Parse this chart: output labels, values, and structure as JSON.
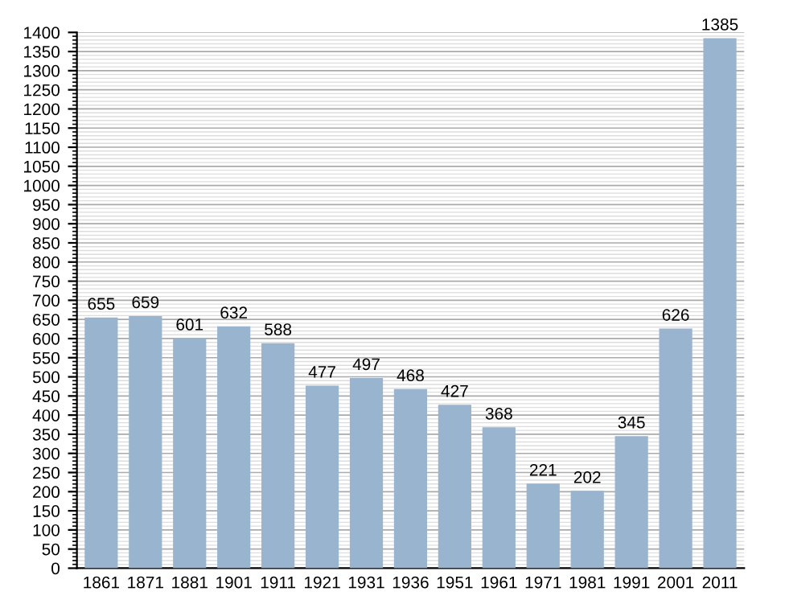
{
  "chart_data": {
    "type": "bar",
    "categories": [
      "1861",
      "1871",
      "1881",
      "1901",
      "1911",
      "1921",
      "1931",
      "1936",
      "1951",
      "1961",
      "1971",
      "1981",
      "1991",
      "2001",
      "2011"
    ],
    "values": [
      655,
      659,
      601,
      632,
      588,
      477,
      497,
      468,
      427,
      368,
      221,
      202,
      345,
      626,
      1385
    ],
    "color": "#98b4cf",
    "ylim": [
      0,
      1400
    ],
    "yticks": [
      0,
      50,
      100,
      150,
      200,
      250,
      300,
      350,
      400,
      450,
      500,
      550,
      600,
      650,
      700,
      750,
      800,
      850,
      900,
      950,
      1000,
      1050,
      1100,
      1150,
      1200,
      1250,
      1300,
      1350,
      1400
    ],
    "grid": "y",
    "data_labels": true
  }
}
